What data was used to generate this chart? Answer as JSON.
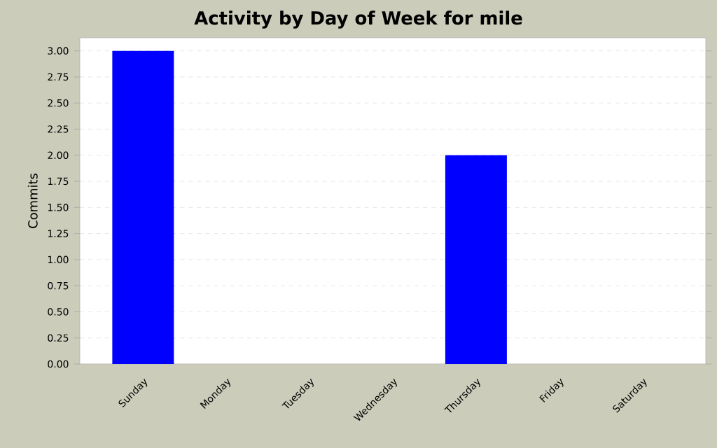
{
  "chart_data": {
    "type": "bar",
    "title": "Activity by Day of Week for mile",
    "ylabel": "Commits",
    "categories": [
      "Sunday",
      "Monday",
      "Tuesday",
      "Wednesday",
      "Thursday",
      "Friday",
      "Saturday"
    ],
    "values": [
      3,
      0,
      0,
      0,
      2,
      0,
      0
    ],
    "color": "#0000ff",
    "ylim": [
      0,
      3.125
    ],
    "yticks": [
      {
        "value": 0,
        "label": "0.00"
      },
      {
        "value": 0.25,
        "label": "0.25"
      },
      {
        "value": 0.5,
        "label": "0.50"
      },
      {
        "value": 0.75,
        "label": "0.75"
      },
      {
        "value": 1,
        "label": "1.00"
      },
      {
        "value": 1.25,
        "label": "1.25"
      },
      {
        "value": 1.5,
        "label": "1.50"
      },
      {
        "value": 1.75,
        "label": "1.75"
      },
      {
        "value": 2,
        "label": "2.00"
      },
      {
        "value": 2.25,
        "label": "2.25"
      },
      {
        "value": 2.5,
        "label": "2.50"
      },
      {
        "value": 2.75,
        "label": "2.75"
      },
      {
        "value": 3,
        "label": "3.00"
      }
    ],
    "grid": "y"
  }
}
